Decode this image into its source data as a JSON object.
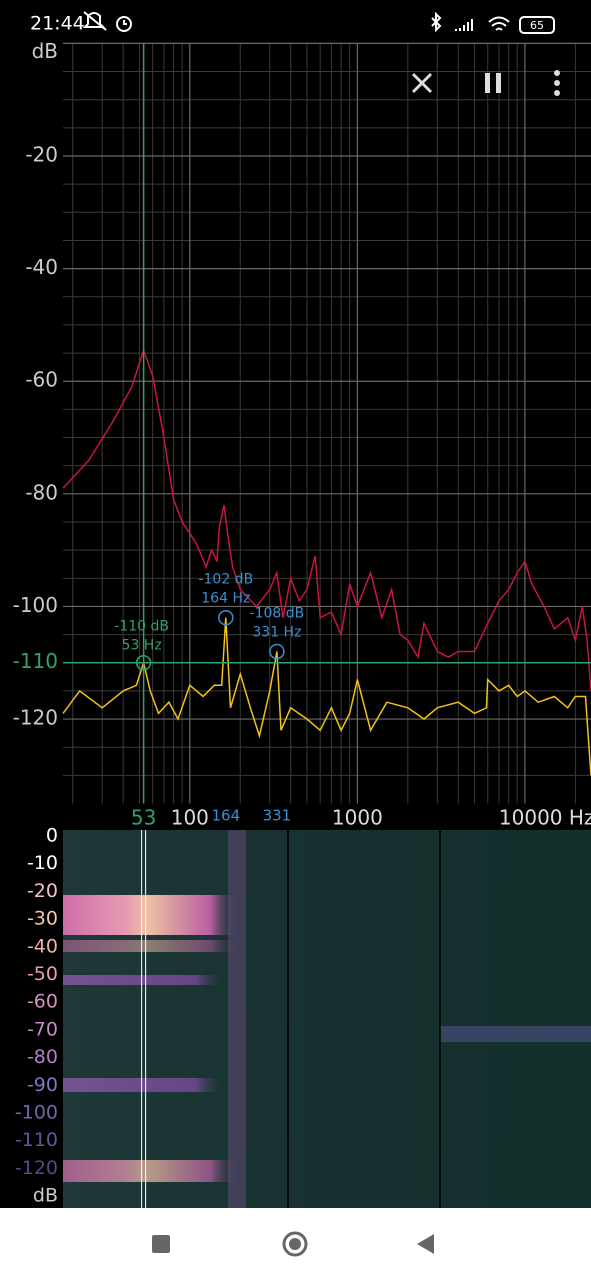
{
  "status_bar": {
    "time": "21:44",
    "battery": "65"
  },
  "chart_data": {
    "type": "line",
    "x_log": true,
    "xlim": [
      17.5,
      24800
    ],
    "ylim": [
      -135,
      0
    ],
    "xticks": [
      100,
      1000,
      {
        "value": 10000,
        "label": "10000 Hz"
      }
    ],
    "yticks": [
      {
        "value": 0,
        "label": "dB"
      },
      -20,
      -40,
      -60,
      -80,
      -100,
      -120
    ],
    "x_grid": [
      20,
      30,
      40,
      50,
      60,
      70,
      80,
      90,
      200,
      300,
      400,
      500,
      600,
      700,
      800,
      900,
      2000,
      3000,
      4000,
      5000,
      6000,
      7000,
      8000,
      9000,
      20000
    ],
    "y_grid": [
      -5,
      -10,
      -15,
      -25,
      -30,
      -35,
      -45,
      -50,
      -55,
      -65,
      -70,
      -75,
      -85,
      -90,
      -95,
      -105,
      -110,
      -115,
      -125,
      -130
    ],
    "grid": true,
    "series": [
      {
        "name": "peak-hold",
        "color": "#c8163c",
        "x": [
          17.5,
          25,
          35,
          45,
          53,
          60,
          70,
          80,
          90,
          100,
          110,
          125,
          135,
          145,
          150,
          160,
          170,
          180,
          200,
          250,
          300,
          330,
          360,
          400,
          450,
          500,
          560,
          600,
          700,
          800,
          900,
          1000,
          1200,
          1400,
          1600,
          1800,
          2000,
          2300,
          2500,
          3000,
          3500,
          4000,
          5000,
          6000,
          7000,
          8000,
          9000,
          10000,
          11000,
          13000,
          15000,
          18000,
          20000,
          22000,
          23500,
          24800
        ],
        "values": [
          -79,
          -74,
          -67,
          -61,
          -54.5,
          -59,
          -70,
          -81,
          -85,
          -87,
          -89,
          -93,
          -90,
          -92,
          -86,
          -82,
          -88,
          -93,
          -97,
          -100,
          -97,
          -94,
          -102,
          -95,
          -99,
          -97,
          -91,
          -102,
          -101,
          -105,
          -96,
          -100,
          -94,
          -102,
          -97,
          -105,
          -106,
          -109,
          -103,
          -108,
          -109,
          -108,
          -108,
          -103,
          -99,
          -97,
          -94,
          -92,
          -96,
          -100,
          -104,
          -102,
          -106,
          -100,
          -106,
          -115
        ]
      },
      {
        "name": "spectrum",
        "color": "#f2c21b",
        "x": [
          17.5,
          22,
          30,
          40,
          48,
          53,
          58,
          65,
          75,
          85,
          100,
          120,
          140,
          155,
          164,
          175,
          200,
          230,
          260,
          300,
          331,
          350,
          400,
          500,
          600,
          700,
          800,
          900,
          1000,
          1200,
          1500,
          2000,
          2500,
          3000,
          4000,
          5000,
          5900,
          6000,
          7000,
          8000,
          9000,
          10000,
          12000,
          15000,
          18000,
          20000,
          23000,
          24000,
          24800
        ],
        "values": [
          -119,
          -115,
          -118,
          -115,
          -114,
          -110,
          -115,
          -119,
          -117,
          -120,
          -114,
          -116,
          -114,
          -114,
          -102,
          -118,
          -112,
          -118,
          -123,
          -115,
          -108,
          -122,
          -118,
          -120,
          -122,
          -118,
          -122,
          -119,
          -113,
          -122,
          -117,
          -118,
          -120,
          -118,
          -117,
          -119,
          -118,
          -113,
          -115,
          -114,
          -116,
          -115,
          -117,
          -116,
          -118,
          -116,
          -116,
          -124,
          -130
        ]
      }
    ],
    "cursor": {
      "x": 53,
      "y": -110,
      "color": "#2fa36b",
      "label": [
        "-110 dB",
        "53 Hz"
      ]
    },
    "peaks": [
      {
        "x": 164,
        "y": -102,
        "color": "#3a8fd0",
        "label": [
          "-102 dB",
          "164 Hz"
        ]
      },
      {
        "x": 331,
        "y": -108,
        "color": "#3a8fd0",
        "label": [
          "-108 dB",
          "331 Hz"
        ]
      }
    ]
  },
  "spectrogram": {
    "scale": [
      "0",
      "-10",
      "-20",
      "-30",
      "-40",
      "-50",
      "-60",
      "-70",
      "-80",
      "-90",
      "-100",
      "-110",
      "-120"
    ],
    "unit": "dB",
    "scale_colors": [
      "#ffffff",
      "#ffffff",
      "#f3c0c8",
      "#f6c6a8",
      "#f0b0a8",
      "#e89ab8",
      "#d890c0",
      "#c88ac8",
      "#b080c8",
      "#8a72c0",
      "#7464b0",
      "#5a5a9a",
      "#4e4e88"
    ]
  }
}
